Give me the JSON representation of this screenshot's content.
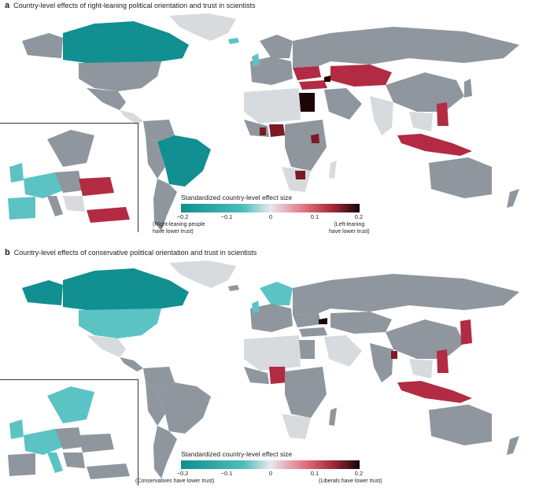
{
  "panels": [
    {
      "letter": "a",
      "title": "Country-level effects of right-leaning political orientation and trust in scientists",
      "legend": {
        "title": "Standardized country-level effect size",
        "ticks": [
          "−0.2",
          "−0.1",
          "0",
          "0.1",
          "0.2"
        ],
        "note_left": "(Right-leaning people\nhave lower trust)",
        "note_right": "(Left-leaning\nhave lower trust)"
      }
    },
    {
      "letter": "b",
      "title": "Country-level effects of conservative political orientation and trust in scientists",
      "legend": {
        "title": "Standardized country-level effect size",
        "ticks": [
          "−0.2",
          "−0.1",
          "0",
          "0.1",
          "0.2"
        ],
        "note_left": "(Conservatives have lower trust)",
        "note_right": "(Liberals have lower trust)"
      }
    }
  ],
  "colors": {
    "no_data": "#8f969e",
    "near_zero": "#d8dbde",
    "negative_strong": "#118f91",
    "negative_mild": "#5cc3c5",
    "positive_mild": "#b22b43",
    "positive_strong": "#7a1b26",
    "positive_extreme": "#1e0505"
  }
}
